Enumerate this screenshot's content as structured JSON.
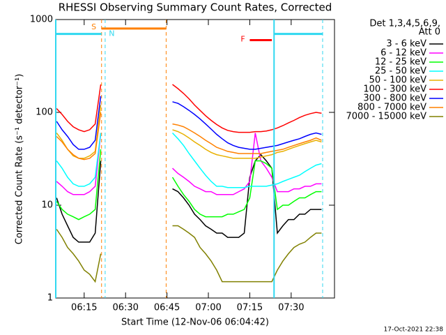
{
  "chart_data": {
    "type": "line",
    "title": "RHESSI Observing Summary Count Rates, Corrected",
    "xlabel": "Start Time (12-Nov-06 06:04:42)",
    "ylabel": "Corrected Count Rate (s⁻¹ detector⁻¹)",
    "legend_title": [
      "Det 1,3,4,5,6,9,",
      "Att 0"
    ],
    "timestamp": "17-Oct-2021 22:38",
    "log_y": true,
    "xlim": [
      4.7,
      105.7
    ],
    "ylim": [
      1,
      1000
    ],
    "yticks": [
      1,
      10,
      100,
      1000
    ],
    "xticks": [
      {
        "value": 15,
        "label": "06:15"
      },
      {
        "value": 30,
        "label": "06:30"
      },
      {
        "value": 45,
        "label": "06:45"
      },
      {
        "value": 60,
        "label": "07:00"
      },
      {
        "value": 75,
        "label": "07:15"
      },
      {
        "value": 90,
        "label": "07:30"
      }
    ],
    "x": [
      5,
      7,
      9,
      11,
      13,
      15,
      17,
      19,
      21,
      33,
      47,
      49,
      51,
      53,
      55,
      57,
      59,
      61,
      63,
      65,
      67,
      69,
      71,
      73,
      75,
      77,
      79,
      81,
      83,
      85,
      87,
      89,
      91,
      93,
      95,
      97,
      99,
      101
    ],
    "series": [
      {
        "name": "3 - 6 keV",
        "color": "#000000",
        "values": [
          12,
          8,
          6,
          4.5,
          4,
          4,
          4,
          5,
          30,
          null,
          15,
          14,
          12,
          10,
          8,
          7,
          6,
          5.5,
          5,
          5,
          4.5,
          4.5,
          4.5,
          5,
          20,
          30,
          35,
          30,
          25,
          5,
          6,
          7,
          7,
          8,
          8,
          9,
          9,
          9
        ]
      },
      {
        "name": "6 - 12 keV",
        "color": "#ff00ff",
        "values": [
          18,
          16,
          14,
          13,
          13,
          13,
          14,
          16,
          60,
          null,
          25,
          22,
          20,
          18,
          16,
          15,
          14,
          14,
          13,
          13,
          13,
          13,
          14,
          15,
          18,
          60,
          30,
          25,
          20,
          14,
          14,
          14,
          15,
          15,
          16,
          16,
          17,
          17
        ]
      },
      {
        "name": "12 - 25 keV",
        "color": "#00ff00",
        "values": [
          11,
          9,
          8,
          7.5,
          7,
          7.5,
          8,
          9,
          40,
          null,
          20,
          16,
          13,
          11,
          9,
          8,
          7.5,
          7.5,
          7.5,
          7.5,
          8,
          8,
          8.5,
          9,
          12,
          30,
          30,
          28,
          25,
          9,
          10,
          10,
          11,
          12,
          12,
          13,
          14,
          14
        ]
      },
      {
        "name": "25 - 50 keV",
        "color": "#00ffff",
        "values": [
          30,
          25,
          20,
          17,
          16,
          16,
          17,
          20,
          60,
          null,
          60,
          52,
          44,
          36,
          30,
          25,
          21,
          18,
          16,
          16,
          15.5,
          15.5,
          15.5,
          15.5,
          16,
          16,
          16,
          16,
          16.5,
          17,
          18,
          19,
          20,
          21,
          23,
          25,
          27,
          28
        ]
      },
      {
        "name": "50 - 100 keV",
        "color": "#e8b000",
        "values": [
          60,
          50,
          40,
          34,
          32,
          32,
          34,
          38,
          120,
          null,
          65,
          62,
          58,
          53,
          48,
          44,
          40,
          37,
          35,
          34,
          33,
          32,
          32,
          32,
          32,
          32,
          33,
          34,
          35,
          37,
          38,
          40,
          42,
          44,
          46,
          48,
          50,
          48
        ]
      },
      {
        "name": "100 - 300 keV",
        "color": "#ff0000",
        "values": [
          110,
          95,
          80,
          70,
          65,
          62,
          65,
          75,
          200,
          null,
          200,
          180,
          160,
          140,
          120,
          105,
          92,
          82,
          74,
          68,
          64,
          62,
          61,
          61,
          61,
          62,
          62,
          63,
          65,
          68,
          72,
          77,
          82,
          88,
          93,
          97,
          100,
          98
        ]
      },
      {
        "name": "300 - 800 keV",
        "color": "#0000ff",
        "values": [
          80,
          65,
          55,
          45,
          40,
          40,
          42,
          50,
          150,
          null,
          130,
          125,
          115,
          105,
          95,
          85,
          75,
          66,
          58,
          52,
          47,
          44,
          42,
          41,
          40,
          40,
          41,
          42,
          43,
          44,
          46,
          48,
          50,
          52,
          55,
          58,
          60,
          58
        ]
      },
      {
        "name": "800 - 7000 keV",
        "color": "#ff8000",
        "values": [
          55,
          48,
          40,
          35,
          32,
          31,
          32,
          36,
          100,
          null,
          75,
          73,
          70,
          65,
          60,
          55,
          50,
          46,
          42,
          40,
          38,
          37,
          36,
          36,
          36,
          36,
          36,
          37,
          38,
          39,
          40,
          42,
          44,
          46,
          48,
          50,
          53,
          50
        ]
      },
      {
        "name": "7000 - 15000 keV",
        "color": "#808000",
        "values": [
          5.5,
          4.5,
          3.5,
          3,
          2.5,
          2,
          1.8,
          1.5,
          3,
          null,
          6,
          6,
          5.5,
          5,
          4.5,
          3.5,
          3,
          2.5,
          2,
          1.5,
          1.5,
          1.5,
          1.5,
          1.5,
          1.5,
          1.5,
          1.5,
          1.5,
          1.5,
          2,
          2.5,
          3,
          3.5,
          3.8,
          4,
          4.5,
          5,
          5
        ]
      }
    ],
    "vlines": [
      {
        "x": 4.7,
        "color": "#30d8f0",
        "dashed": false
      },
      {
        "x": 22.6,
        "color": "#30d8f0",
        "dashed": true
      },
      {
        "x": 21.3,
        "color": "#ff8000",
        "dashed": true
      },
      {
        "x": 44.7,
        "color": "#ff8000",
        "dashed": true
      },
      {
        "x": 83.8,
        "color": "#30d8f0",
        "dashed": false
      },
      {
        "x": 101.4,
        "color": "#30d8f0",
        "dashed": true
      }
    ],
    "bars": [
      {
        "x": [
          4.7,
          21.3
        ],
        "y": 700,
        "color": "#30d8f0"
      },
      {
        "x": [
          21.3,
          44.7
        ],
        "y": 800,
        "color": "#ff8000"
      },
      {
        "x": [
          75,
          83
        ],
        "y": 600,
        "color": "#ff0000"
      },
      {
        "x": [
          83.8,
          101.4
        ],
        "y": 700,
        "color": "#30d8f0"
      }
    ],
    "annotations": [
      {
        "label": "S",
        "x": 18.5,
        "y": 830,
        "color": "#ff8000"
      },
      {
        "label": "N",
        "x": 25,
        "y": 700,
        "color": "#30d8f0"
      },
      {
        "label": "F",
        "x": 72.5,
        "y": 610,
        "color": "#ff0000"
      }
    ]
  }
}
